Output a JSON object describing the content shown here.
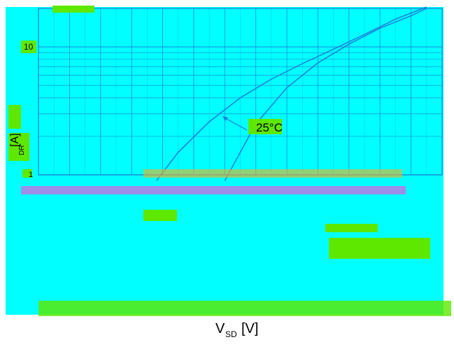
{
  "chart_data": {
    "type": "line",
    "title": "",
    "xlabel": {
      "main": "V",
      "sub": "SD",
      "unit": "[V]"
    },
    "ylabel": {
      "main": "I",
      "sub": "DR",
      "unit": "[A]"
    },
    "y_scale": "log",
    "grid": true,
    "y_tick_labels": [
      "10",
      "1"
    ],
    "annotations": [
      "25°C"
    ],
    "series": [
      {
        "values": [
          [
            0.38,
            0.9
          ],
          [
            0.45,
            1.5
          ],
          [
            0.55,
            2.6
          ],
          [
            0.65,
            4.0
          ],
          [
            0.75,
            5.6
          ],
          [
            0.85,
            7.4
          ],
          [
            0.95,
            9.6
          ],
          [
            1.05,
            12.5
          ],
          [
            1.15,
            16.5
          ],
          [
            1.25,
            20.5
          ]
        ]
      },
      {
        "values": [
          [
            0.6,
            0.9
          ],
          [
            0.7,
            2.5
          ],
          [
            0.8,
            4.8
          ],
          [
            0.9,
            7.5
          ],
          [
            1.0,
            10.5
          ],
          [
            1.1,
            14.0
          ],
          [
            1.2,
            17.5
          ],
          [
            1.25,
            20.0
          ]
        ]
      }
    ]
  },
  "colors": {
    "curve": "#1f7fd8",
    "grid": "#1f7fd8",
    "background": "#00ffff",
    "highlight": "#5ee800",
    "overlay": "#e060e0",
    "accent": "#f0b020"
  }
}
